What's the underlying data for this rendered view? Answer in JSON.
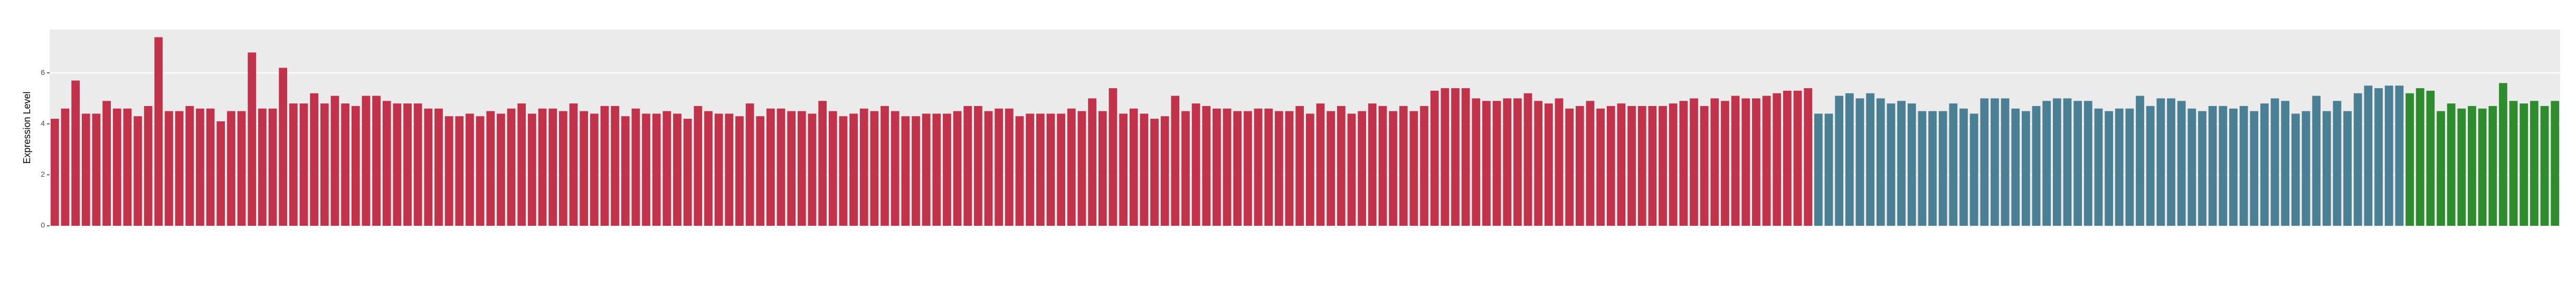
{
  "chart_data": {
    "type": "bar",
    "y_label": "Expression Level",
    "categories": [
      null,
      null,
      null,
      null,
      null,
      null,
      null,
      null,
      null,
      null,
      null,
      null,
      null,
      null,
      null,
      null,
      null,
      null,
      null,
      null,
      null,
      null,
      null,
      null,
      null,
      null,
      null,
      null,
      null,
      null,
      null,
      null,
      null,
      null,
      null,
      null,
      null,
      null,
      null,
      null,
      null,
      null,
      null,
      null,
      null,
      null,
      null,
      null,
      null,
      null,
      null,
      null,
      null,
      null,
      null,
      null,
      null,
      null,
      null,
      null,
      null,
      null,
      null,
      null,
      null,
      null,
      null,
      null,
      null,
      null,
      null,
      null,
      null,
      null,
      null,
      null,
      null,
      null,
      null,
      null,
      null,
      null,
      null,
      null,
      null,
      null,
      null,
      null,
      null,
      null,
      null,
      null,
      null,
      null,
      null,
      null,
      null,
      null,
      null,
      null,
      null,
      null,
      null,
      null,
      null,
      null,
      null,
      null,
      null,
      null,
      null,
      null,
      null,
      null,
      null,
      null,
      null,
      null,
      null,
      null,
      null,
      null,
      null,
      null,
      null,
      null,
      null,
      null,
      null,
      null,
      null,
      null,
      null,
      null,
      null,
      null,
      null,
      null,
      null,
      null,
      null,
      null,
      null,
      null,
      null,
      null,
      null,
      null,
      null,
      null,
      null,
      null,
      null,
      null,
      null,
      null,
      null,
      null,
      null,
      null,
      null,
      null,
      null,
      null,
      null,
      null,
      null,
      null,
      null,
      null,
      null,
      null,
      null,
      null,
      null,
      null,
      null,
      null,
      null,
      null,
      null,
      null,
      null,
      null,
      null,
      null,
      null,
      null,
      null,
      null,
      null,
      null,
      null,
      null,
      null,
      null,
      null,
      null,
      null,
      null,
      null,
      null,
      null,
      null,
      null,
      null,
      null,
      null,
      null,
      null,
      null,
      null,
      null,
      null,
      null,
      null,
      null,
      null,
      null,
      null,
      null,
      null,
      null,
      null,
      null,
      null,
      null,
      null,
      null,
      null,
      null,
      null,
      null,
      null,
      null,
      null,
      null,
      null,
      null,
      null,
      null,
      null
    ],
    "values": [
      4.2,
      4.6,
      5.7,
      4.4,
      4.4,
      4.9,
      4.6,
      4.6,
      4.3,
      4.7,
      7.4,
      4.5,
      4.5,
      4.7,
      4.6,
      4.6,
      4.1,
      4.5,
      4.5,
      6.8,
      4.6,
      4.6,
      6.2,
      4.8,
      4.8,
      5.2,
      4.8,
      5.1,
      4.8,
      4.7,
      5.1,
      5.1,
      4.9,
      4.8,
      4.8,
      4.8,
      4.6,
      4.6,
      4.3,
      4.3,
      4.4,
      4.3,
      4.5,
      4.4,
      4.6,
      4.8,
      4.4,
      4.6,
      4.6,
      4.5,
      4.8,
      4.5,
      4.4,
      4.7,
      4.7,
      4.3,
      4.6,
      4.4,
      4.4,
      4.5,
      4.4,
      4.2,
      4.7,
      4.5,
      4.4,
      4.4,
      4.3,
      4.8,
      4.3,
      4.6,
      4.6,
      4.5,
      4.5,
      4.4,
      4.9,
      4.5,
      4.3,
      4.4,
      4.6,
      4.5,
      4.7,
      4.5,
      4.3,
      4.3,
      4.4,
      4.4,
      4.4,
      4.5,
      4.7,
      4.7,
      4.5,
      4.6,
      4.6,
      4.3,
      4.4,
      4.4,
      4.4,
      4.4,
      4.6,
      4.5,
      5.0,
      4.5,
      5.4,
      4.4,
      4.6,
      4.4,
      4.2,
      4.3,
      5.1,
      4.5,
      4.8,
      4.7,
      4.6,
      4.6,
      4.5,
      4.5,
      4.6,
      4.6,
      4.5,
      4.5,
      4.7,
      4.4,
      4.8,
      4.5,
      4.7,
      4.4,
      4.5,
      4.8,
      4.7,
      4.5,
      4.7,
      4.5,
      4.7,
      5.3,
      5.4,
      5.4,
      5.4,
      5.0,
      4.9,
      4.9,
      5.0,
      5.0,
      5.2,
      4.9,
      4.8,
      5.0,
      4.6,
      4.7,
      4.9,
      4.6,
      4.7,
      4.8,
      4.7,
      4.7,
      4.7,
      4.7,
      4.8,
      4.9,
      5.0,
      4.7,
      5.0,
      4.9,
      5.1,
      5.0,
      5.0,
      5.1,
      5.2,
      5.3,
      5.3,
      5.4,
      4.4,
      4.4,
      5.1,
      5.2,
      5.0,
      5.2,
      5.0,
      4.8,
      4.9,
      4.8,
      4.5,
      4.5,
      4.5,
      4.8,
      4.6,
      4.4,
      5.0,
      5.0,
      5.0,
      4.6,
      4.5,
      4.7,
      4.9,
      5.0,
      5.0,
      4.9,
      4.9,
      4.6,
      4.5,
      4.6,
      4.6,
      5.1,
      4.7,
      5.0,
      5.0,
      4.9,
      4.6,
      4.5,
      4.7,
      4.7,
      4.6,
      4.7,
      4.5,
      4.8,
      5.0,
      4.9,
      4.4,
      4.5,
      5.1,
      4.5,
      4.9,
      4.5,
      5.2,
      5.5,
      5.4,
      5.5,
      5.5,
      5.2,
      5.4,
      5.3,
      4.5,
      4.8,
      4.6,
      4.7,
      4.6,
      4.7,
      5.6,
      4.9,
      4.8,
      4.9,
      4.7,
      4.9
    ],
    "colors": [
      "#c0334a",
      "#c0334a",
      "#c0334a",
      "#c0334a",
      "#c0334a",
      "#c0334a",
      "#c0334a",
      "#c0334a",
      "#c0334a",
      "#c0334a",
      "#c0334a",
      "#c0334a",
      "#c0334a",
      "#c0334a",
      "#c0334a",
      "#c0334a",
      "#c0334a",
      "#c0334a",
      "#c0334a",
      "#c0334a",
      "#c0334a",
      "#c0334a",
      "#c0334a",
      "#c0334a",
      "#c0334a",
      "#c0334a",
      "#c0334a",
      "#c0334a",
      "#c0334a",
      "#c0334a",
      "#c0334a",
      "#c0334a",
      "#c0334a",
      "#c0334a",
      "#c0334a",
      "#c0334a",
      "#c0334a",
      "#c0334a",
      "#c0334a",
      "#c0334a",
      "#c0334a",
      "#c0334a",
      "#c0334a",
      "#c0334a",
      "#c0334a",
      "#c0334a",
      "#c0334a",
      "#c0334a",
      "#c0334a",
      "#c0334a",
      "#c0334a",
      "#c0334a",
      "#c0334a",
      "#c0334a",
      "#c0334a",
      "#c0334a",
      "#c0334a",
      "#c0334a",
      "#c0334a",
      "#c0334a",
      "#c0334a",
      "#c0334a",
      "#c0334a",
      "#c0334a",
      "#c0334a",
      "#c0334a",
      "#c0334a",
      "#c0334a",
      "#c0334a",
      "#c0334a",
      "#c0334a",
      "#c0334a",
      "#c0334a",
      "#c0334a",
      "#c0334a",
      "#c0334a",
      "#c0334a",
      "#c0334a",
      "#c0334a",
      "#c0334a",
      "#c0334a",
      "#c0334a",
      "#c0334a",
      "#c0334a",
      "#c0334a",
      "#c0334a",
      "#c0334a",
      "#c0334a",
      "#c0334a",
      "#c0334a",
      "#c0334a",
      "#c0334a",
      "#c0334a",
      "#c0334a",
      "#c0334a",
      "#c0334a",
      "#c0334a",
      "#c0334a",
      "#c0334a",
      "#c0334a",
      "#c0334a",
      "#c0334a",
      "#c0334a",
      "#c0334a",
      "#c0334a",
      "#c0334a",
      "#c0334a",
      "#c0334a",
      "#c0334a",
      "#c0334a",
      "#c0334a",
      "#c0334a",
      "#c0334a",
      "#c0334a",
      "#c0334a",
      "#c0334a",
      "#c0334a",
      "#c0334a",
      "#c0334a",
      "#c0334a",
      "#c0334a",
      "#c0334a",
      "#c0334a",
      "#c0334a",
      "#c0334a",
      "#c0334a",
      "#c0334a",
      "#c0334a",
      "#c0334a",
      "#c0334a",
      "#c0334a",
      "#c0334a",
      "#c0334a",
      "#c0334a",
      "#c0334a",
      "#c0334a",
      "#c0334a",
      "#c0334a",
      "#c0334a",
      "#c0334a",
      "#c0334a",
      "#c0334a",
      "#c0334a",
      "#c0334a",
      "#c0334a",
      "#c0334a",
      "#c0334a",
      "#c0334a",
      "#c0334a",
      "#c0334a",
      "#c0334a",
      "#c0334a",
      "#c0334a",
      "#c0334a",
      "#c0334a",
      "#c0334a",
      "#c0334a",
      "#c0334a",
      "#c0334a",
      "#c0334a",
      "#c0334a",
      "#c0334a",
      "#c0334a",
      "#c0334a",
      "#c0334a",
      "#c0334a",
      "#c0334a",
      "#c0334a",
      "#c0334a",
      "#c0334a",
      "#4a7f94",
      "#4a7f94",
      "#4a7f94",
      "#4a7f94",
      "#4a7f94",
      "#4a7f94",
      "#4a7f94",
      "#4a7f94",
      "#4a7f94",
      "#4a7f94",
      "#4a7f94",
      "#4a7f94",
      "#4a7f94",
      "#4a7f94",
      "#4a7f94",
      "#4a7f94",
      "#4a7f94",
      "#4a7f94",
      "#4a7f94",
      "#4a7f94",
      "#4a7f94",
      "#4a7f94",
      "#4a7f94",
      "#4a7f94",
      "#4a7f94",
      "#4a7f94",
      "#4a7f94",
      "#4a7f94",
      "#4a7f94",
      "#4a7f94",
      "#4a7f94",
      "#4a7f94",
      "#4a7f94",
      "#4a7f94",
      "#4a7f94",
      "#4a7f94",
      "#4a7f94",
      "#4a7f94",
      "#4a7f94",
      "#4a7f94",
      "#4a7f94",
      "#4a7f94",
      "#4a7f94",
      "#4a7f94",
      "#4a7f94",
      "#4a7f94",
      "#4a7f94",
      "#4a7f94",
      "#4a7f94",
      "#4a7f94",
      "#4a7f94",
      "#4a7f94",
      "#4a7f94",
      "#4a7f94",
      "#4a7f94",
      "#4a7f94",
      "#4a7f94",
      "#2e8b2e",
      "#2e8b2e",
      "#2e8b2e",
      "#2e8b2e",
      "#2e8b2e",
      "#2e8b2e",
      "#2e8b2e",
      "#2e8b2e",
      "#2e8b2e",
      "#2e8b2e",
      "#2e8b2e",
      "#2e8b2e",
      "#2e8b2e",
      "#2e8b2e",
      "#2e8b2e"
    ],
    "ylim": [
      0,
      7.7
    ],
    "yticks": [
      0,
      2,
      4,
      6
    ],
    "grid": true
  }
}
